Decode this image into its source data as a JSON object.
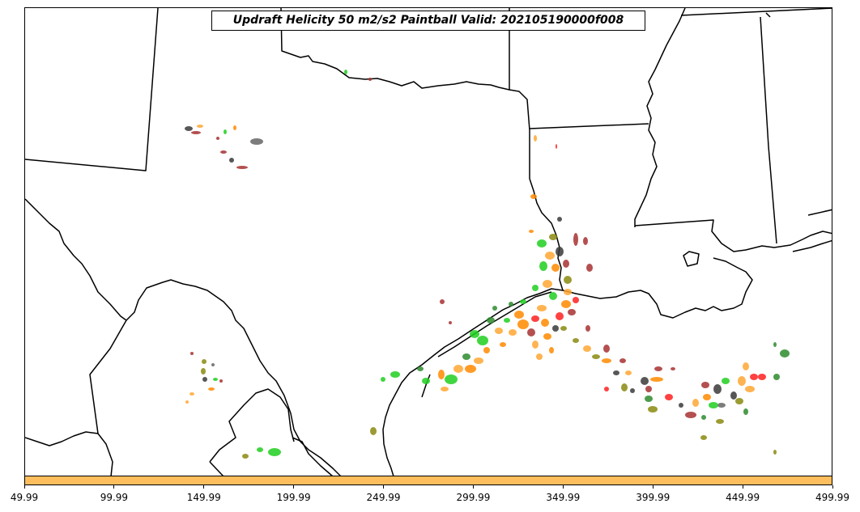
{
  "title": "Updraft Helicity 50 m2/s2 Paintball Valid: 202105190000f008",
  "colorbar": {
    "color": "#ffbe5e",
    "ticks": [
      "49.99",
      "99.99",
      "149.99",
      "199.99",
      "249.99",
      "299.99",
      "349.99",
      "399.99",
      "449.99",
      "499.99"
    ]
  },
  "member_colors": [
    "#3a3a3a",
    "#a83232",
    "#ff2020",
    "#ff8a00",
    "#ffa733",
    "#8a8a10",
    "#20d020",
    "#2e8b2e",
    "#666666"
  ]
}
